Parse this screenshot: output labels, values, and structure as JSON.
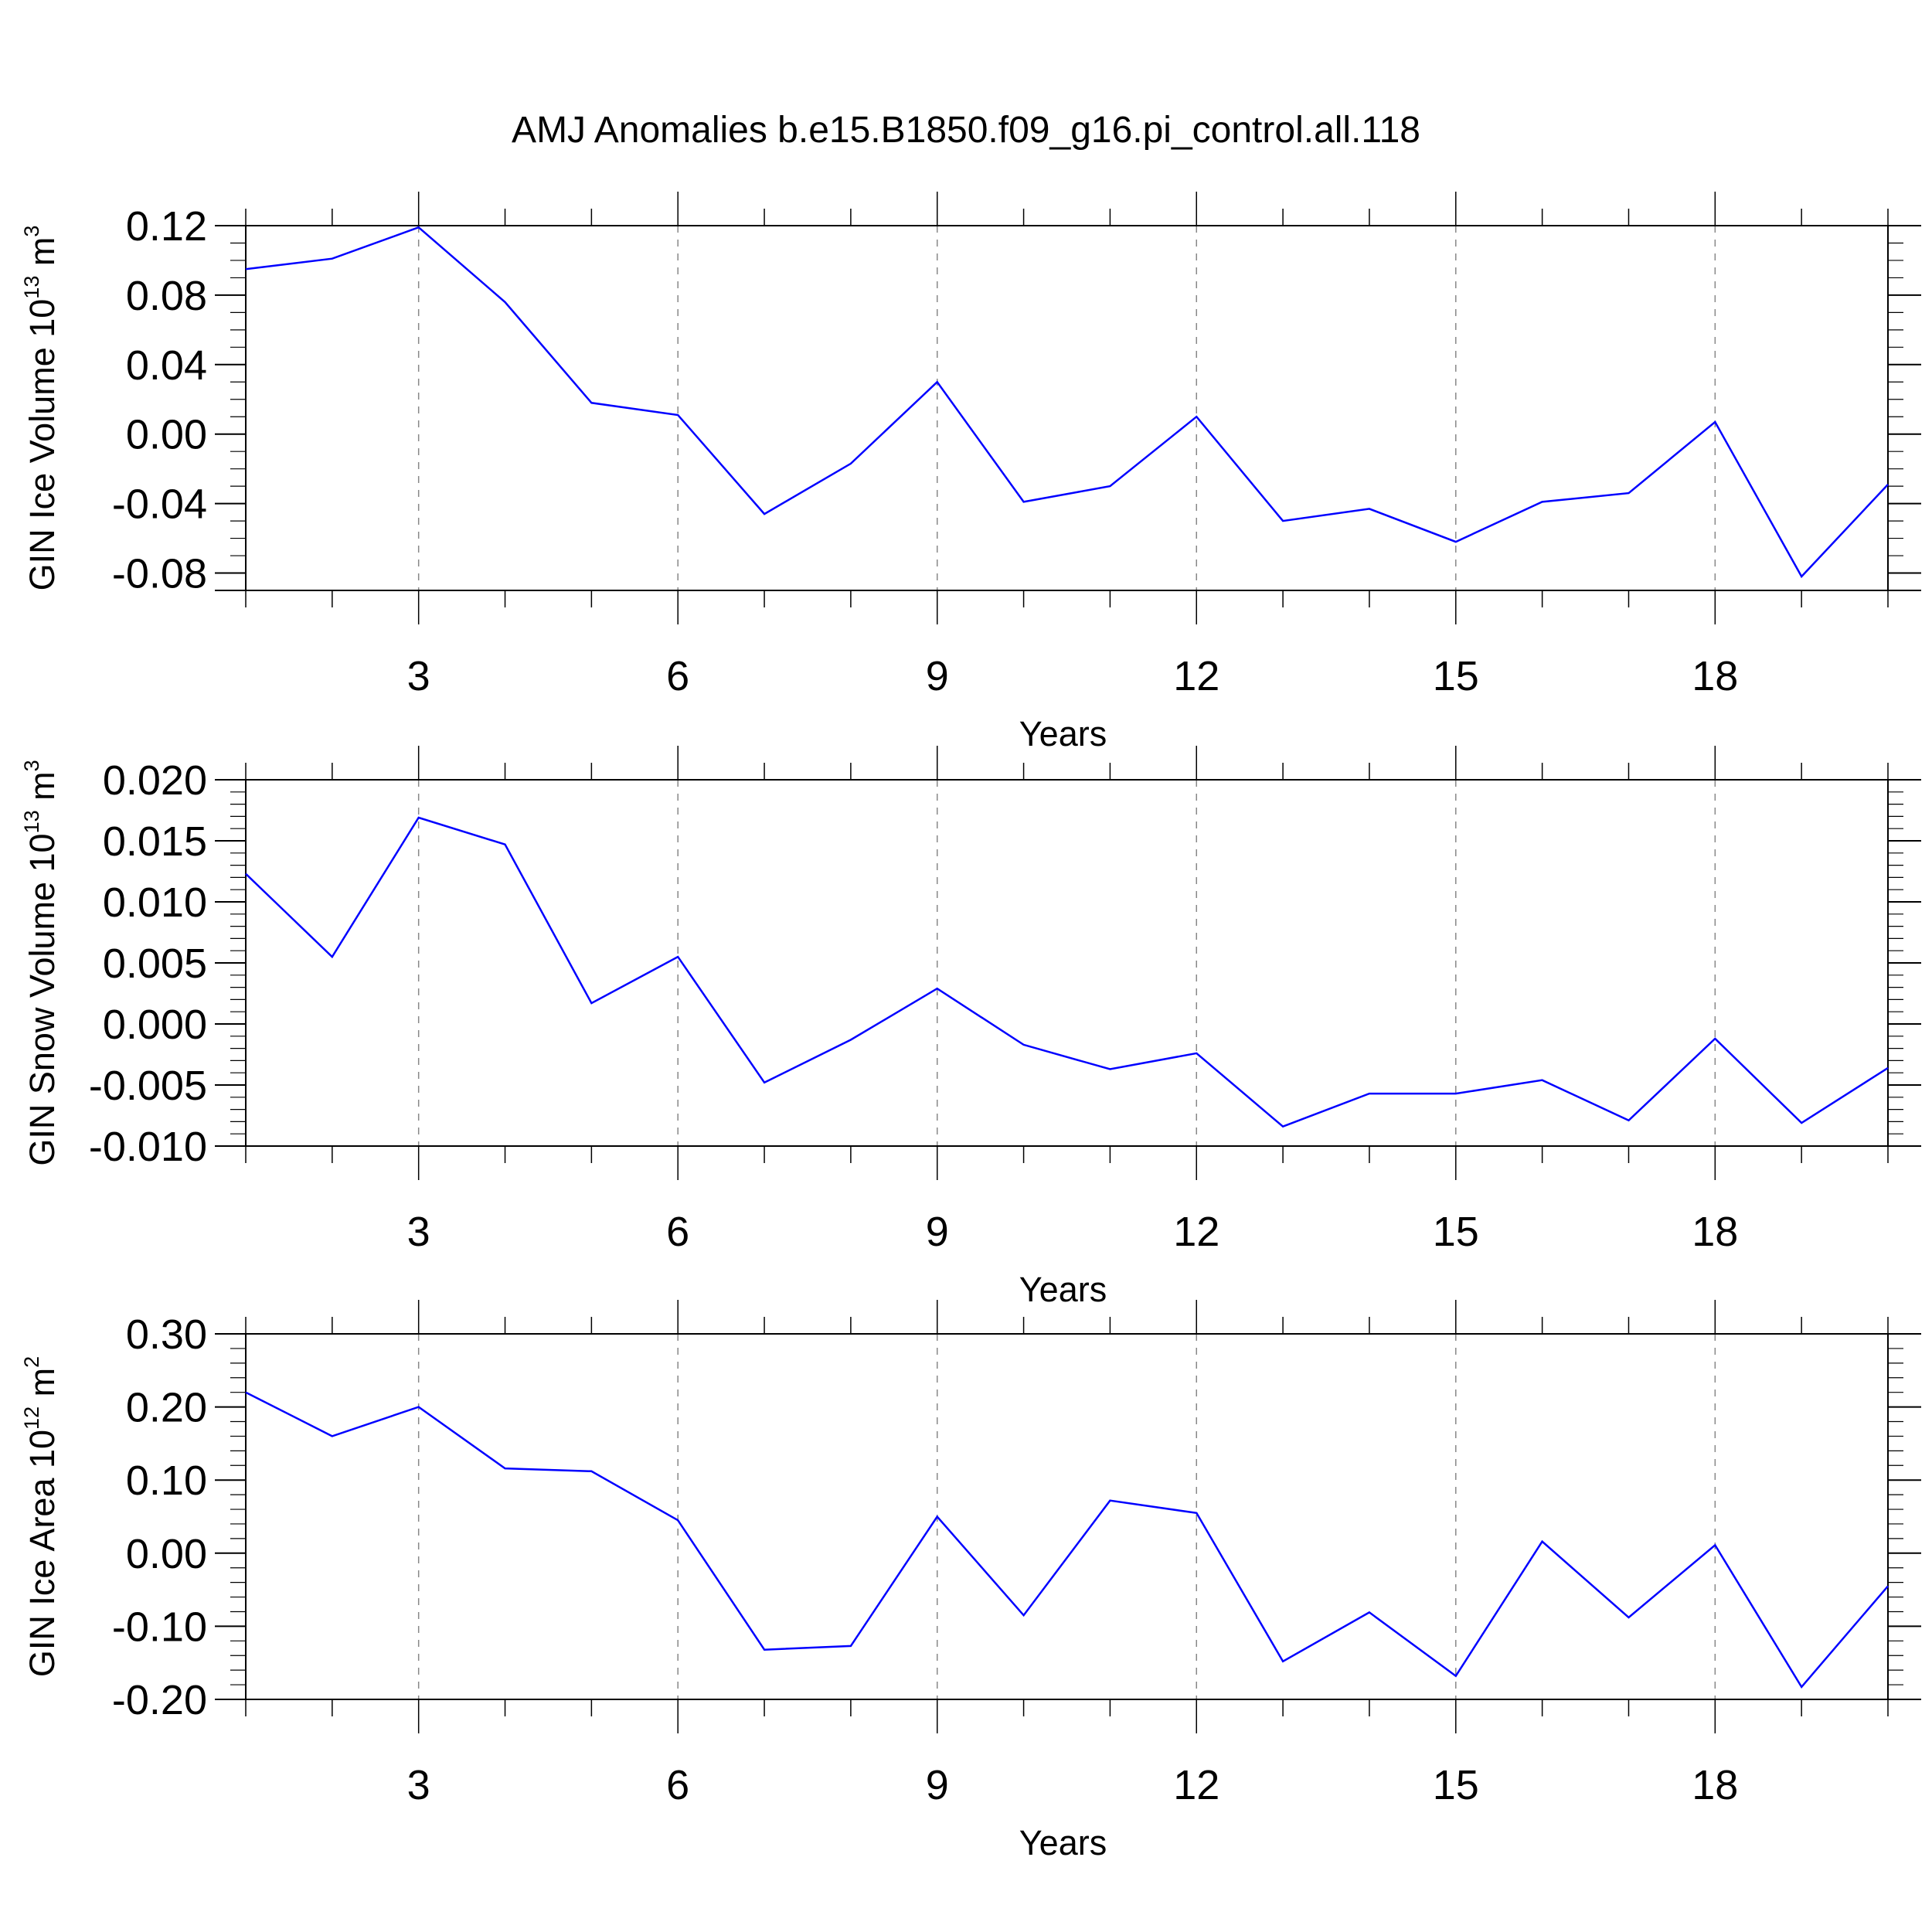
{
  "figure": {
    "title": "AMJ Anomalies b.e15.B1850.f09_g16.pi_control.all.118"
  },
  "chart_data": [
    {
      "type": "line",
      "title": "AMJ Anomalies b.e15.B1850.f09_g16.pi_control.all.118",
      "xlabel": "Years",
      "ylabel": {
        "base": "GIN Ice Volume 10",
        "exp": "13",
        "unit": " m",
        "unit_exp": "3"
      },
      "xlim": [
        1,
        20
      ],
      "ylim": [
        -0.09,
        0.12
      ],
      "xticks": [
        3,
        6,
        9,
        12,
        15,
        18
      ],
      "xtick_labels": [
        "3",
        "6",
        "9",
        "12",
        "15",
        "18"
      ],
      "yticks": [
        -0.08,
        -0.04,
        0.0,
        0.04,
        0.08,
        0.12
      ],
      "ytick_labels": [
        "-0.08",
        "-0.04",
        "0.00",
        "0.04",
        "0.08",
        "0.12"
      ],
      "y_minor_step": 0.01,
      "x_minor_step": 1,
      "grid": "vertical dashed at major x ticks",
      "line_color": "#0000ff",
      "x": [
        1,
        2,
        3,
        4,
        5,
        6,
        7,
        8,
        9,
        10,
        11,
        12,
        13,
        14,
        15,
        16,
        17,
        18,
        19,
        20
      ],
      "values": [
        0.095,
        0.101,
        0.119,
        0.076,
        0.018,
        0.011,
        -0.046,
        -0.017,
        0.03,
        -0.039,
        -0.03,
        0.01,
        -0.05,
        -0.043,
        -0.062,
        -0.039,
        -0.034,
        0.007,
        -0.082,
        -0.029
      ]
    },
    {
      "type": "line",
      "xlabel": "Years",
      "ylabel": {
        "base": "GIN Snow Volume 10",
        "exp": "13",
        "unit": " m",
        "unit_exp": "3"
      },
      "xlim": [
        1,
        20
      ],
      "ylim": [
        -0.01,
        0.02
      ],
      "xticks": [
        3,
        6,
        9,
        12,
        15,
        18
      ],
      "xtick_labels": [
        "3",
        "6",
        "9",
        "12",
        "15",
        "18"
      ],
      "yticks": [
        -0.01,
        -0.005,
        0.0,
        0.005,
        0.01,
        0.015,
        0.02
      ],
      "ytick_labels": [
        "-0.010",
        "-0.005",
        "0.000",
        "0.005",
        "0.010",
        "0.015",
        "0.020"
      ],
      "y_minor_step": 0.001,
      "x_minor_step": 1,
      "grid": "vertical dashed at major x ticks",
      "line_color": "#0000ff",
      "x": [
        1,
        2,
        3,
        4,
        5,
        6,
        7,
        8,
        9,
        10,
        11,
        12,
        13,
        14,
        15,
        16,
        17,
        18,
        19,
        20
      ],
      "values": [
        0.0123,
        0.0055,
        0.0169,
        0.0147,
        0.0017,
        0.0055,
        -0.0048,
        -0.0013,
        0.0029,
        -0.0017,
        -0.0037,
        -0.0024,
        -0.0084,
        -0.0057,
        -0.0057,
        -0.0046,
        -0.0079,
        -0.0012,
        -0.0081,
        -0.0036
      ]
    },
    {
      "type": "line",
      "xlabel": "Years",
      "ylabel": {
        "base": "GIN Ice Area 10",
        "exp": "12",
        "unit": " m",
        "unit_exp": "2"
      },
      "xlim": [
        1,
        20
      ],
      "ylim": [
        -0.2,
        0.3
      ],
      "xticks": [
        3,
        6,
        9,
        12,
        15,
        18
      ],
      "xtick_labels": [
        "3",
        "6",
        "9",
        "12",
        "15",
        "18"
      ],
      "yticks": [
        -0.2,
        -0.1,
        0.0,
        0.1,
        0.2,
        0.3
      ],
      "ytick_labels": [
        "-0.20",
        "-0.10",
        "0.00",
        "0.10",
        "0.20",
        "0.30"
      ],
      "y_minor_step": 0.02,
      "x_minor_step": 1,
      "grid": "vertical dashed at major x ticks",
      "line_color": "#0000ff",
      "x": [
        1,
        2,
        3,
        4,
        5,
        6,
        7,
        8,
        9,
        10,
        11,
        12,
        13,
        14,
        15,
        16,
        17,
        18,
        19,
        20
      ],
      "values": [
        0.22,
        0.16,
        0.2,
        0.116,
        0.112,
        0.045,
        -0.132,
        -0.127,
        0.05,
        -0.085,
        0.072,
        0.055,
        -0.148,
        -0.081,
        -0.168,
        0.016,
        -0.088,
        0.011,
        -0.183,
        -0.045
      ]
    }
  ]
}
